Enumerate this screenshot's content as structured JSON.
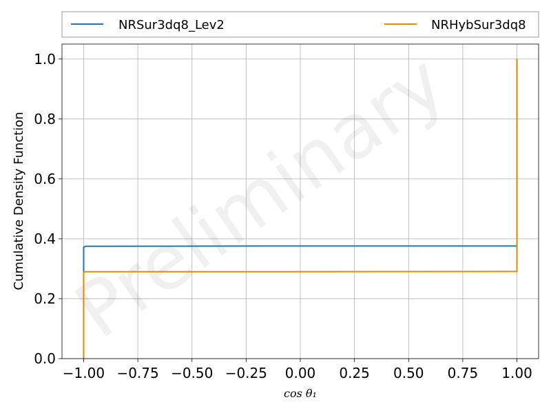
{
  "chart_data": {
    "type": "line",
    "xlabel": "cos θ₁",
    "ylabel": "Cumulative Density Function",
    "xlim": [
      -1.1,
      1.1
    ],
    "ylim": [
      0.0,
      1.05
    ],
    "x_ticks": [
      -1.0,
      -0.75,
      -0.5,
      -0.25,
      0.0,
      0.25,
      0.5,
      0.75,
      1.0
    ],
    "x_tick_labels": [
      "−1.00",
      "−0.75",
      "−0.50",
      "−0.25",
      "0.00",
      "0.25",
      "0.50",
      "0.75",
      "1.00"
    ],
    "y_ticks": [
      0.0,
      0.2,
      0.4,
      0.6,
      0.8,
      1.0
    ],
    "y_tick_labels": [
      "0.0",
      "0.2",
      "0.4",
      "0.6",
      "0.8",
      "1.0"
    ],
    "grid": true,
    "legend_placement": "top, above plot",
    "watermark": "Preliminary",
    "series": [
      {
        "name": "NRSur3dq8_Lev2",
        "color": "#1f77b4",
        "x": [
          -1.0,
          -1.0,
          -0.99,
          0.0,
          0.99,
          1.0,
          1.0
        ],
        "y": [
          0.29,
          0.372,
          0.375,
          0.376,
          0.376,
          0.376,
          1.0
        ]
      },
      {
        "name": "NRHybSur3dq8",
        "color": "#e08a00",
        "x": [
          -1.0,
          -1.0,
          -0.99,
          0.0,
          0.99,
          1.0,
          1.0
        ],
        "y": [
          0.0,
          0.288,
          0.29,
          0.29,
          0.291,
          0.291,
          1.0
        ]
      }
    ]
  }
}
